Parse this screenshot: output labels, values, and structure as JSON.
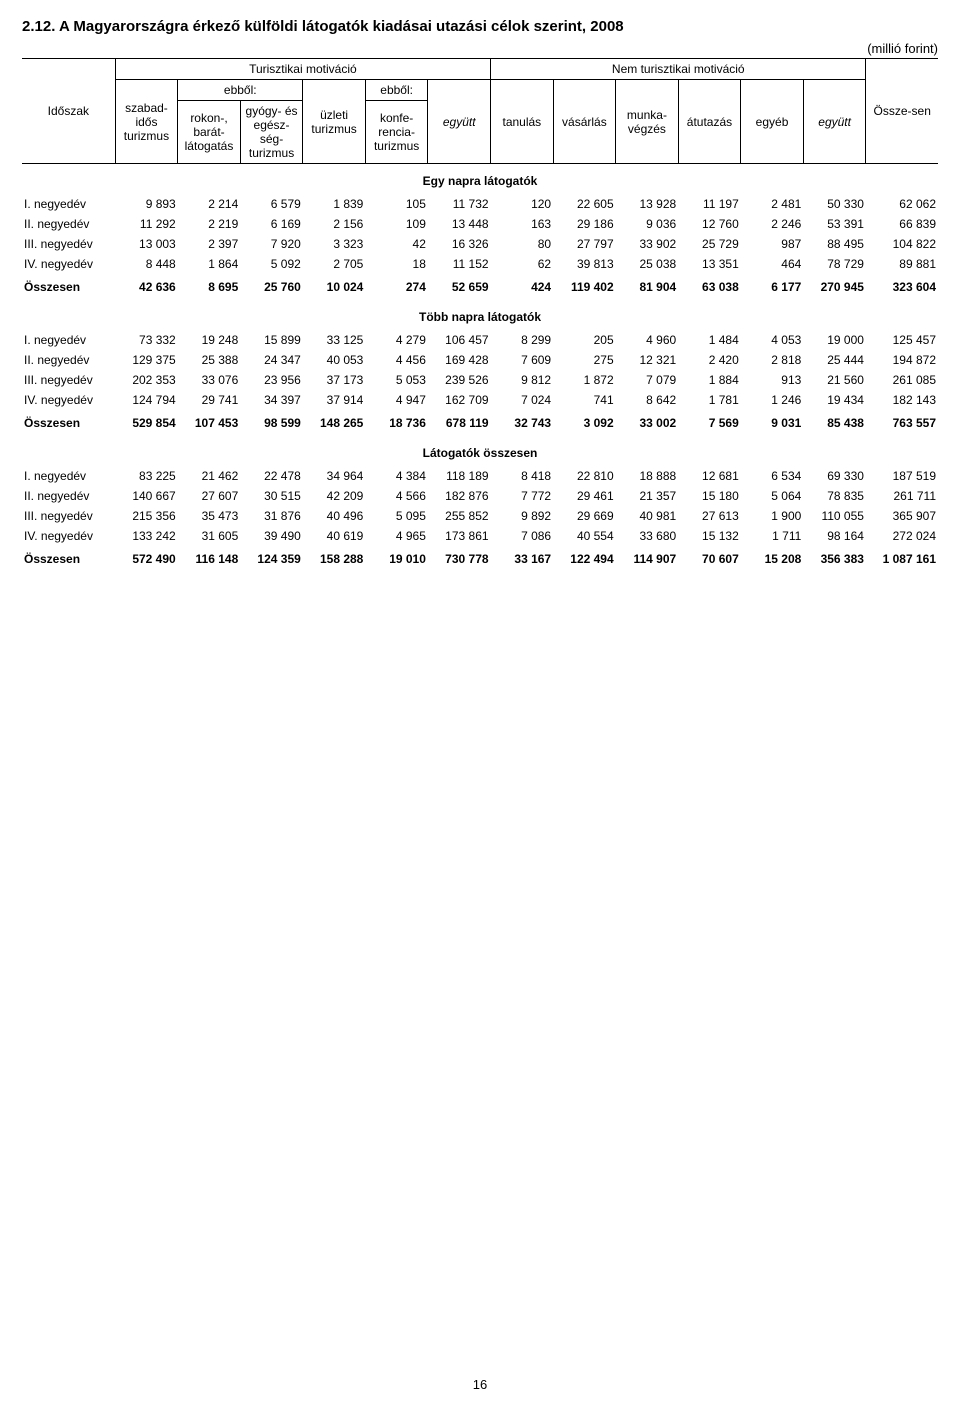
{
  "title": "2.12. A Magyarországra érkező külföldi látogatók kiadásai utazási célok szerint, 2008",
  "unit": "(millió forint)",
  "page_number": "16",
  "header": {
    "group_tour": "Turisztikai motiváció",
    "group_nontour": "Nem turisztikai motiváció",
    "ebbol1": "ebből:",
    "ebbol2": "ebből:",
    "idoszak": "Időszak",
    "c1": "szabad-idős turizmus",
    "c2": "rokon-, barát-látogatás",
    "c3": "gyógy- és egész-ség-turizmus",
    "c4": "üzleti turizmus",
    "c5": "konfe-rencia-turizmus",
    "c6": "együtt",
    "c7": "tanulás",
    "c8": "vásárlás",
    "c9": "munka-végzés",
    "c10": "átutazás",
    "c11": "egyéb",
    "c12": "együtt",
    "c13": "Össze-sen"
  },
  "sections": [
    {
      "title": "Egy napra látogatók",
      "rows": [
        {
          "label": "I. negyedév",
          "v": [
            "9 893",
            "2 214",
            "6 579",
            "1 839",
            "105",
            "11 732",
            "120",
            "22 605",
            "13 928",
            "11 197",
            "2 481",
            "50 330",
            "62 062"
          ]
        },
        {
          "label": "II. negyedév",
          "v": [
            "11 292",
            "2 219",
            "6 169",
            "2 156",
            "109",
            "13 448",
            "163",
            "29 186",
            "9 036",
            "12 760",
            "2 246",
            "53 391",
            "66 839"
          ]
        },
        {
          "label": "III. negyedév",
          "v": [
            "13 003",
            "2 397",
            "7 920",
            "3 323",
            "42",
            "16 326",
            "80",
            "27 797",
            "33 902",
            "25 729",
            "987",
            "88 495",
            "104 822"
          ]
        },
        {
          "label": "IV. negyedév",
          "v": [
            "8 448",
            "1 864",
            "5 092",
            "2 705",
            "18",
            "11 152",
            "62",
            "39 813",
            "25 038",
            "13 351",
            "464",
            "78 729",
            "89 881"
          ]
        }
      ],
      "sum": {
        "label": "Összesen",
        "v": [
          "42 636",
          "8 695",
          "25 760",
          "10 024",
          "274",
          "52 659",
          "424",
          "119 402",
          "81 904",
          "63 038",
          "6 177",
          "270 945",
          "323 604"
        ]
      }
    },
    {
      "title": "Több napra látogatók",
      "rows": [
        {
          "label": "I. negyedév",
          "v": [
            "73 332",
            "19 248",
            "15 899",
            "33 125",
            "4 279",
            "106 457",
            "8 299",
            "205",
            "4 960",
            "1 484",
            "4 053",
            "19 000",
            "125 457"
          ]
        },
        {
          "label": "II. negyedév",
          "v": [
            "129 375",
            "25 388",
            "24 347",
            "40 053",
            "4 456",
            "169 428",
            "7 609",
            "275",
            "12 321",
            "2 420",
            "2 818",
            "25 444",
            "194 872"
          ]
        },
        {
          "label": "III. negyedév",
          "v": [
            "202 353",
            "33 076",
            "23 956",
            "37 173",
            "5 053",
            "239 526",
            "9 812",
            "1 872",
            "7 079",
            "1 884",
            "913",
            "21 560",
            "261 085"
          ]
        },
        {
          "label": "IV. negyedév",
          "v": [
            "124 794",
            "29 741",
            "34 397",
            "37 914",
            "4 947",
            "162 709",
            "7 024",
            "741",
            "8 642",
            "1 781",
            "1 246",
            "19 434",
            "182 143"
          ]
        }
      ],
      "sum": {
        "label": "Összesen",
        "v": [
          "529 854",
          "107 453",
          "98 599",
          "148 265",
          "18 736",
          "678 119",
          "32 743",
          "3 092",
          "33 002",
          "7 569",
          "9 031",
          "85 438",
          "763 557"
        ]
      }
    },
    {
      "title": "Látogatók összesen",
      "rows": [
        {
          "label": "I. negyedév",
          "v": [
            "83 225",
            "21 462",
            "22 478",
            "34 964",
            "4 384",
            "118 189",
            "8 418",
            "22 810",
            "18 888",
            "12 681",
            "6 534",
            "69 330",
            "187 519"
          ]
        },
        {
          "label": "II. negyedév",
          "v": [
            "140 667",
            "27 607",
            "30 515",
            "42 209",
            "4 566",
            "182 876",
            "7 772",
            "29 461",
            "21 357",
            "15 180",
            "5 064",
            "78 835",
            "261 711"
          ]
        },
        {
          "label": "III. negyedév",
          "v": [
            "215 356",
            "35 473",
            "31 876",
            "40 496",
            "5 095",
            "255 852",
            "9 892",
            "29 669",
            "40 981",
            "27 613",
            "1 900",
            "110 055",
            "365 907"
          ]
        },
        {
          "label": "IV. negyedév",
          "v": [
            "133 242",
            "31 605",
            "39 490",
            "40 619",
            "4 965",
            "173 861",
            "7 086",
            "40 554",
            "33 680",
            "15 132",
            "1 711",
            "98 164",
            "272 024"
          ]
        }
      ],
      "sum": {
        "label": "Összesen",
        "v": [
          "572 490",
          "116 148",
          "124 359",
          "158 288",
          "19 010",
          "730 778",
          "33 167",
          "122 494",
          "114 907",
          "70 607",
          "15 208",
          "356 383",
          "1 087 161"
        ]
      }
    }
  ]
}
